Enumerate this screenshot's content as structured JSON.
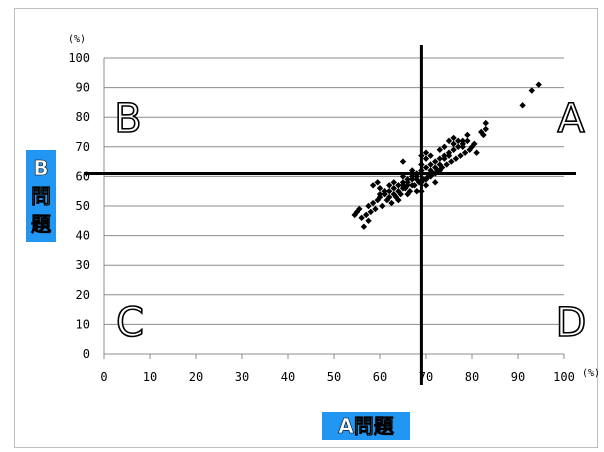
{
  "chart_data": {
    "type": "scatter",
    "xlabel": "A問題",
    "ylabel": "B問題",
    "x_unit": "(%)",
    "y_unit": "(%)",
    "xlim": [
      0,
      100
    ],
    "ylim": [
      0,
      100
    ],
    "x_ticks": [
      0,
      10,
      20,
      30,
      40,
      50,
      60,
      70,
      80,
      90,
      100
    ],
    "y_ticks": [
      0,
      10,
      20,
      30,
      40,
      50,
      60,
      70,
      80,
      90,
      100
    ],
    "grid": true,
    "divider_x": 69,
    "divider_y": 61,
    "quadrant_labels": {
      "top_left": "B",
      "top_right": "A",
      "bottom_left": "C",
      "bottom_right": "D"
    },
    "marker_color": "#000000",
    "points": [
      [
        54.5,
        47
      ],
      [
        55,
        48
      ],
      [
        55.5,
        49
      ],
      [
        56,
        46
      ],
      [
        56.5,
        43
      ],
      [
        57,
        47
      ],
      [
        57.5,
        50
      ],
      [
        58,
        48
      ],
      [
        58.5,
        51
      ],
      [
        59,
        49
      ],
      [
        57.5,
        45
      ],
      [
        59.5,
        52
      ],
      [
        60,
        53
      ],
      [
        60.5,
        50
      ],
      [
        61,
        54
      ],
      [
        61.5,
        52
      ],
      [
        62,
        55
      ],
      [
        62.5,
        51
      ],
      [
        63,
        56
      ],
      [
        63.5,
        53
      ],
      [
        58.5,
        57
      ],
      [
        59.5,
        58
      ],
      [
        64,
        57
      ],
      [
        64.5,
        54
      ],
      [
        65,
        58
      ],
      [
        65.5,
        56
      ],
      [
        65,
        65
      ],
      [
        66,
        59
      ],
      [
        66.5,
        55
      ],
      [
        67,
        60
      ],
      [
        67.5,
        57
      ],
      [
        68,
        61
      ],
      [
        68.5,
        58
      ],
      [
        69,
        62
      ],
      [
        69.5,
        59
      ],
      [
        70,
        63
      ],
      [
        70.5,
        60
      ],
      [
        71,
        64
      ],
      [
        71.5,
        61
      ],
      [
        72,
        65
      ],
      [
        72.5,
        62
      ],
      [
        73,
        66
      ],
      [
        73.5,
        63
      ],
      [
        74,
        67
      ],
      [
        74.5,
        64
      ],
      [
        75,
        68
      ],
      [
        75.5,
        65
      ],
      [
        76,
        69
      ],
      [
        76.5,
        66
      ],
      [
        77,
        70
      ],
      [
        77.5,
        67
      ],
      [
        78,
        71
      ],
      [
        78.5,
        68
      ],
      [
        79,
        72
      ],
      [
        79.5,
        69
      ],
      [
        80,
        70
      ],
      [
        80.5,
        71
      ],
      [
        81,
        68
      ],
      [
        82,
        75
      ],
      [
        82.5,
        74
      ],
      [
        83,
        76
      ],
      [
        83,
        78
      ],
      [
        75,
        72
      ],
      [
        76,
        73
      ],
      [
        77,
        72
      ],
      [
        78,
        70
      ],
      [
        72,
        58
      ],
      [
        70,
        57
      ],
      [
        68,
        55
      ],
      [
        66,
        54
      ],
      [
        64,
        52
      ],
      [
        62,
        53
      ],
      [
        60,
        56
      ],
      [
        63,
        58
      ],
      [
        65,
        60
      ],
      [
        67,
        62
      ],
      [
        69,
        64
      ],
      [
        70,
        66
      ],
      [
        71,
        67
      ],
      [
        73,
        69
      ],
      [
        74,
        70
      ],
      [
        76,
        71
      ],
      [
        78,
        72
      ],
      [
        79,
        74
      ],
      [
        69,
        67
      ],
      [
        70,
        68
      ],
      [
        67,
        57
      ],
      [
        68,
        59
      ],
      [
        66,
        57
      ],
      [
        65,
        56
      ],
      [
        64,
        55
      ],
      [
        63,
        54
      ],
      [
        62,
        57
      ],
      [
        61,
        55
      ],
      [
        60,
        54
      ],
      [
        71,
        62
      ],
      [
        72,
        63
      ],
      [
        73,
        64
      ],
      [
        74,
        66
      ],
      [
        75,
        67
      ],
      [
        69,
        58
      ],
      [
        70,
        59
      ],
      [
        71,
        60
      ],
      [
        72,
        61
      ],
      [
        73,
        62
      ],
      [
        69,
        55
      ],
      [
        68,
        60
      ],
      [
        67,
        59
      ],
      [
        66,
        58
      ],
      [
        65,
        57
      ],
      [
        91,
        84
      ],
      [
        93,
        89
      ],
      [
        94.5,
        91
      ]
    ]
  }
}
